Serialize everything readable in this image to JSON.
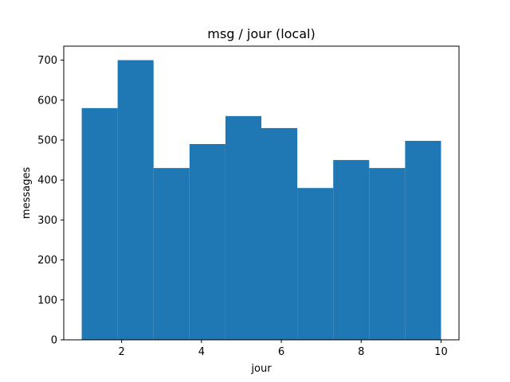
{
  "chart_data": {
    "type": "bar",
    "histogram": true,
    "title": "msg / jour (local)",
    "xlabel": "jour",
    "ylabel": "messages",
    "bin_edges": [
      1.0,
      1.9,
      2.8,
      3.7,
      4.6,
      5.5,
      6.4,
      7.3,
      8.2,
      9.1,
      10.0
    ],
    "values": [
      580,
      700,
      430,
      490,
      560,
      530,
      380,
      450,
      430,
      498
    ],
    "xlim": [
      0.55,
      10.45
    ],
    "ylim": [
      0,
      735
    ],
    "xticks": [
      2,
      4,
      6,
      8,
      10
    ],
    "yticks": [
      0,
      100,
      200,
      300,
      400,
      500,
      600,
      700
    ],
    "bar_color": "#1f77b4",
    "grid": false
  }
}
